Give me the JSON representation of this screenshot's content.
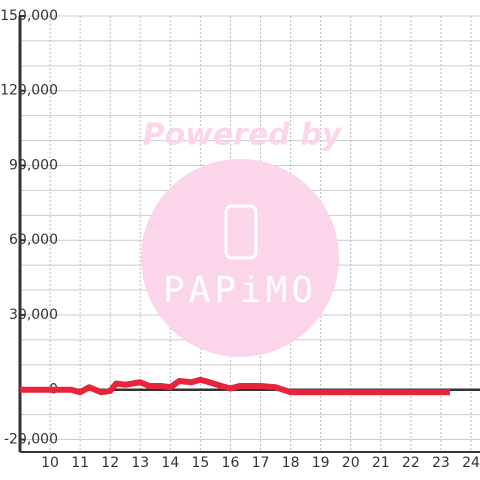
{
  "chart_data": {
    "type": "line",
    "watermark": {
      "line1": "Powered by",
      "line2": "PAPiMO"
    },
    "x": [
      9,
      10,
      10.7,
      11,
      11.3,
      11.7,
      12,
      12.2,
      12.5,
      13,
      13.3,
      13.7,
      14,
      14.3,
      14.7,
      15,
      15.3,
      15.7,
      16,
      16.3,
      17,
      17.5,
      18,
      18.5,
      19,
      20,
      21,
      22,
      23,
      23.3
    ],
    "series": [
      {
        "color": "#e8243a",
        "values": [
          0,
          0,
          0,
          -1000,
          1000,
          -1000,
          -500,
          2500,
          2000,
          3000,
          1500,
          1500,
          1000,
          3500,
          3000,
          4000,
          3000,
          1500,
          500,
          1500,
          1500,
          1000,
          -1000,
          -1000,
          -1000,
          -1000,
          -1000,
          -1000,
          -1000,
          -1000
        ]
      }
    ],
    "xlim": [
      9,
      24.3
    ],
    "xticks": [
      10,
      11,
      12,
      13,
      14,
      15,
      16,
      17,
      18,
      19,
      20,
      21,
      22,
      23,
      24
    ],
    "ylim": [
      -25000,
      150000
    ],
    "yticks": [
      {
        "value": -20000,
        "label": "-20,000"
      },
      0,
      {
        "value": 30000,
        "label": "30,000"
      },
      {
        "value": 60000,
        "label": "60,000"
      },
      {
        "value": 90000,
        "label": "90,000"
      },
      {
        "value": 120000,
        "label": "120,000"
      },
      {
        "value": 150000,
        "label": "150,000"
      }
    ],
    "ygrid": [
      -20000,
      -10000,
      0,
      10000,
      20000,
      30000,
      40000,
      50000,
      60000,
      70000,
      80000,
      90000,
      100000,
      110000,
      120000,
      130000,
      140000,
      150000
    ],
    "grid": true
  }
}
